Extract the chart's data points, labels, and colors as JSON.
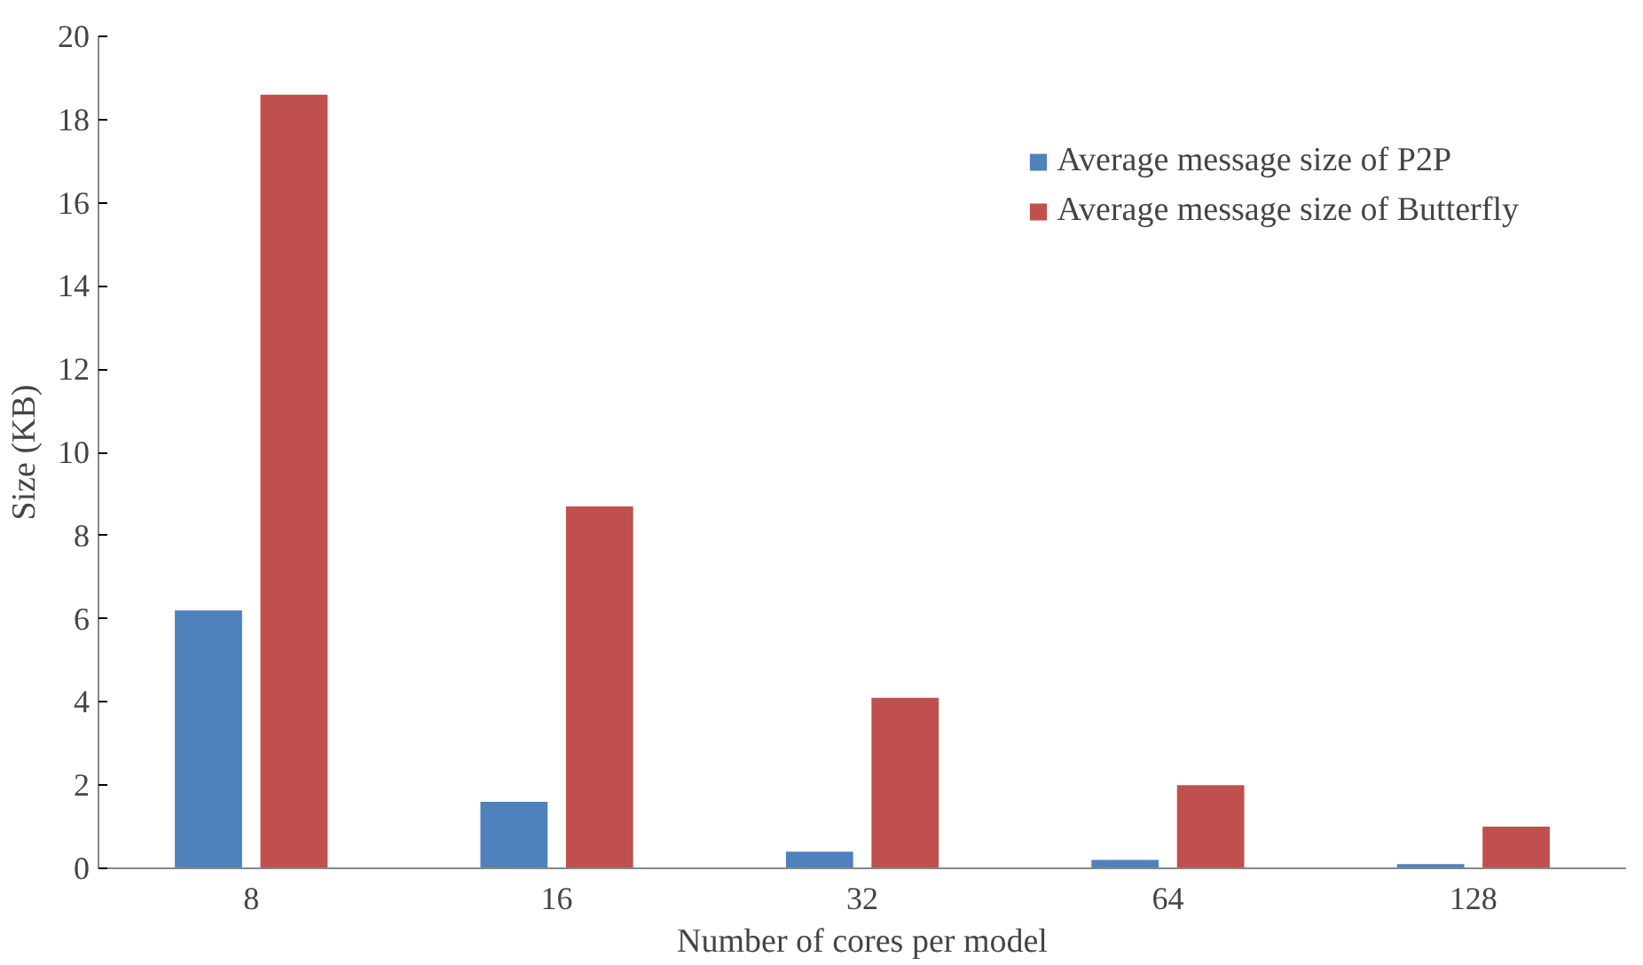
{
  "chart_data": {
    "type": "bar",
    "xlabel": "Number of cores per model",
    "ylabel": "Size (KB)",
    "categories": [
      "8",
      "16",
      "32",
      "64",
      "128"
    ],
    "series": [
      {
        "name": "Average message size of P2P",
        "color": "#4f81bd",
        "values": [
          6.2,
          1.6,
          0.4,
          0.2,
          0.1
        ]
      },
      {
        "name": "Average message size of Butterfly",
        "color": "#c0504d",
        "values": [
          18.6,
          8.7,
          4.1,
          2.0,
          1.0
        ]
      }
    ],
    "ylim": [
      0,
      20
    ],
    "yticks": [
      0,
      2,
      4,
      6,
      8,
      10,
      12,
      14,
      16,
      18,
      20
    ],
    "grid": false,
    "legend": "top right"
  }
}
